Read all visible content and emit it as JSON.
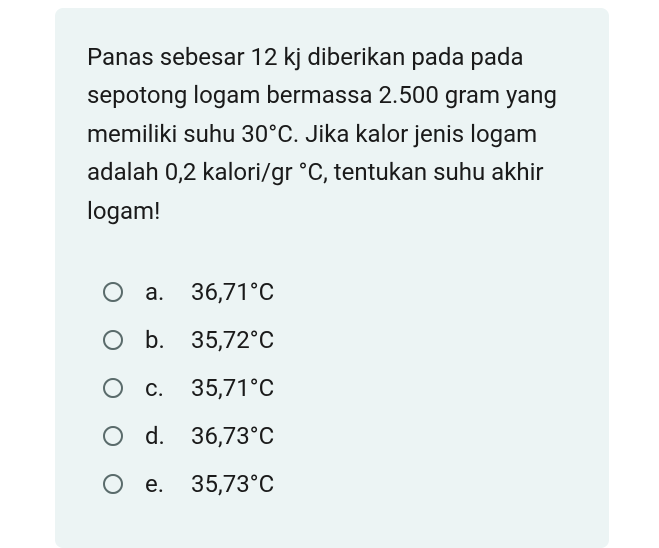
{
  "question": {
    "text": "Panas sebesar 12 kj diberikan pada pada sepotong logam bermassa 2.500 gram yang memiliki suhu 30°C. Jika kalor jenis logam adalah 0,2 kalori/gr °C, tentukan suhu akhir logam!",
    "text_color": "#1a1a1a",
    "font_size": 24,
    "line_height": 1.6
  },
  "options": [
    {
      "letter": "a.",
      "text": "36,71°C"
    },
    {
      "letter": "b.",
      "text": "35,72°C"
    },
    {
      "letter": "c.",
      "text": "35,71°C"
    },
    {
      "letter": "d.",
      "text": "36,73°C"
    },
    {
      "letter": "e.",
      "text": "35,73°C"
    }
  ],
  "styling": {
    "card_background": "#ecf4f4",
    "card_border_radius": 8,
    "radio_border_color": "#5a6b6b",
    "radio_size": 20,
    "option_font_size": 24,
    "option_text_color": "#1a1a1a",
    "body_background": "#ffffff"
  }
}
